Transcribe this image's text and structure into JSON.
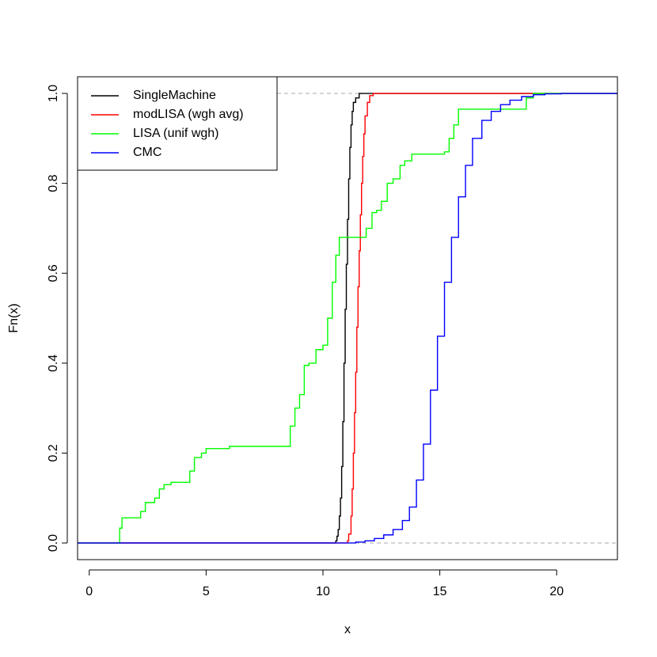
{
  "chart_data": {
    "type": "line",
    "subtype": "ecdf-step",
    "title": "",
    "xlabel": "x",
    "ylabel": "Fn(x)",
    "xlim": [
      -0.5,
      22.6
    ],
    "ylim": [
      -0.037,
      1.037
    ],
    "xticks": [
      0,
      5,
      10,
      15,
      20
    ],
    "yticks": [
      0.0,
      0.2,
      0.4,
      0.6,
      0.8,
      1.0
    ],
    "reference_lines": {
      "y": [
        0,
        1
      ],
      "color": "#aaaaaa",
      "style": "dashed"
    },
    "legend": {
      "position": "top-left"
    },
    "series": [
      {
        "name": "SingleMachine",
        "color": "#000000",
        "points": [
          [
            -0.5,
            0
          ],
          [
            10.45,
            0
          ],
          [
            10.55,
            0.005
          ],
          [
            10.6,
            0.015
          ],
          [
            10.65,
            0.03
          ],
          [
            10.7,
            0.06
          ],
          [
            10.75,
            0.1
          ],
          [
            10.8,
            0.17
          ],
          [
            10.85,
            0.27
          ],
          [
            10.9,
            0.4
          ],
          [
            10.95,
            0.52
          ],
          [
            11.0,
            0.62
          ],
          [
            11.05,
            0.72
          ],
          [
            11.1,
            0.81
          ],
          [
            11.15,
            0.88
          ],
          [
            11.2,
            0.93
          ],
          [
            11.25,
            0.96
          ],
          [
            11.3,
            0.98
          ],
          [
            11.4,
            0.99
          ],
          [
            11.55,
            1.0
          ],
          [
            22.6,
            1.0
          ]
        ]
      },
      {
        "name": "modLISA (wgh avg)",
        "color": "#ff0000",
        "points": [
          [
            -0.5,
            0
          ],
          [
            10.95,
            0
          ],
          [
            11.05,
            0.005
          ],
          [
            11.1,
            0.02
          ],
          [
            11.2,
            0.06
          ],
          [
            11.25,
            0.12
          ],
          [
            11.3,
            0.2
          ],
          [
            11.35,
            0.29
          ],
          [
            11.4,
            0.38
          ],
          [
            11.45,
            0.48
          ],
          [
            11.5,
            0.57
          ],
          [
            11.55,
            0.65
          ],
          [
            11.6,
            0.73
          ],
          [
            11.65,
            0.8
          ],
          [
            11.7,
            0.86
          ],
          [
            11.75,
            0.91
          ],
          [
            11.8,
            0.95
          ],
          [
            11.9,
            0.98
          ],
          [
            12.0,
            0.995
          ],
          [
            12.15,
            1.0
          ],
          [
            22.6,
            1.0
          ]
        ]
      },
      {
        "name": "LISA (unif wgh)",
        "color": "#00ff00",
        "points": [
          [
            -0.5,
            0
          ],
          [
            1.25,
            0
          ],
          [
            1.3,
            0.033
          ],
          [
            1.4,
            0.056
          ],
          [
            2.1,
            0.056
          ],
          [
            2.2,
            0.07
          ],
          [
            2.4,
            0.09
          ],
          [
            2.8,
            0.1
          ],
          [
            3.0,
            0.12
          ],
          [
            3.2,
            0.13
          ],
          [
            3.5,
            0.135
          ],
          [
            4.3,
            0.16
          ],
          [
            4.5,
            0.19
          ],
          [
            4.8,
            0.2
          ],
          [
            5.0,
            0.21
          ],
          [
            6.0,
            0.215
          ],
          [
            8.4,
            0.215
          ],
          [
            8.6,
            0.26
          ],
          [
            8.8,
            0.3
          ],
          [
            9.0,
            0.33
          ],
          [
            9.2,
            0.395
          ],
          [
            9.4,
            0.4
          ],
          [
            9.7,
            0.43
          ],
          [
            10.0,
            0.44
          ],
          [
            10.2,
            0.5
          ],
          [
            10.4,
            0.58
          ],
          [
            10.55,
            0.64
          ],
          [
            10.7,
            0.68
          ],
          [
            11.7,
            0.68
          ],
          [
            11.85,
            0.7
          ],
          [
            12.1,
            0.735
          ],
          [
            12.3,
            0.74
          ],
          [
            12.5,
            0.76
          ],
          [
            12.75,
            0.8
          ],
          [
            13.0,
            0.81
          ],
          [
            13.3,
            0.84
          ],
          [
            13.5,
            0.85
          ],
          [
            13.8,
            0.865
          ],
          [
            15.2,
            0.87
          ],
          [
            15.4,
            0.9
          ],
          [
            15.6,
            0.93
          ],
          [
            15.8,
            0.965
          ],
          [
            18.4,
            0.965
          ],
          [
            18.7,
            0.99
          ],
          [
            19.0,
            1.0
          ],
          [
            22.6,
            1.0
          ]
        ]
      },
      {
        "name": "CMC",
        "color": "#0000ff",
        "points": [
          [
            -0.5,
            0
          ],
          [
            10.9,
            0
          ],
          [
            11.4,
            0.002
          ],
          [
            11.8,
            0.005
          ],
          [
            12.2,
            0.01
          ],
          [
            12.6,
            0.018
          ],
          [
            13.0,
            0.03
          ],
          [
            13.4,
            0.05
          ],
          [
            13.7,
            0.08
          ],
          [
            14.0,
            0.14
          ],
          [
            14.3,
            0.22
          ],
          [
            14.6,
            0.34
          ],
          [
            14.9,
            0.46
          ],
          [
            15.2,
            0.58
          ],
          [
            15.5,
            0.68
          ],
          [
            15.8,
            0.77
          ],
          [
            16.1,
            0.84
          ],
          [
            16.4,
            0.9
          ],
          [
            16.8,
            0.94
          ],
          [
            17.2,
            0.96
          ],
          [
            17.6,
            0.975
          ],
          [
            18.0,
            0.985
          ],
          [
            18.5,
            0.993
          ],
          [
            19.0,
            0.997
          ],
          [
            19.5,
            0.999
          ],
          [
            20.2,
            1.0
          ],
          [
            22.6,
            1.0
          ]
        ]
      }
    ]
  }
}
